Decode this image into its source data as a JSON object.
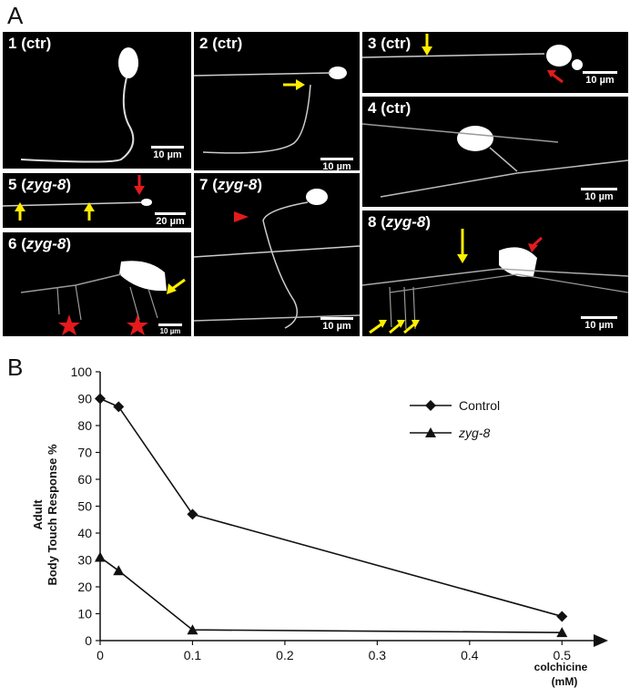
{
  "panel_a_letter": "A",
  "panel_b_letter": "B",
  "image_panels": [
    {
      "num": "1",
      "open": " (ctr)",
      "mutant": "",
      "close": "",
      "scale": "10 µm"
    },
    {
      "num": "2",
      "open": " (ctr)",
      "mutant": "",
      "close": "",
      "scale": "10 µm"
    },
    {
      "num": "3",
      "open": " (ctr)",
      "mutant": "",
      "close": "",
      "scale": "10 µm"
    },
    {
      "num": "4",
      "open": " (ctr)",
      "mutant": "",
      "close": "",
      "scale": "10 µm"
    },
    {
      "num": "5",
      "open": " (",
      "mutant": "zyg-8",
      "close": ")",
      "scale": "20 µm"
    },
    {
      "num": "6",
      "open": " (",
      "mutant": "zyg-8",
      "close": ")",
      "scale": "10 µm"
    },
    {
      "num": "7",
      "open": " (",
      "mutant": "zyg-8",
      "close": ")",
      "scale": "10 µm"
    },
    {
      "num": "8",
      "open": " (",
      "mutant": "zyg-8",
      "close": ")",
      "scale": "10 µm"
    }
  ],
  "chart_data": {
    "type": "line",
    "x": [
      0,
      0.02,
      0.1,
      0.5
    ],
    "x_tick_labels": [
      "0",
      "0.1",
      "0.2",
      "0.3",
      "0.4",
      "0.5"
    ],
    "x_ticks": [
      0,
      0.1,
      0.2,
      0.3,
      0.4,
      0.5
    ],
    "xlim": [
      0,
      0.55
    ],
    "xlabel_line1": "colchicine",
    "xlabel_line2": "(mM)",
    "ylabel_line1": "Adult",
    "ylabel_line2": "Body Touch Response %",
    "ylim": [
      0,
      100
    ],
    "y_ticks": [
      0,
      10,
      20,
      30,
      40,
      50,
      60,
      70,
      80,
      90,
      100
    ],
    "series": [
      {
        "name": "Control",
        "marker": "diamond",
        "values": [
          90,
          87,
          47,
          9
        ]
      },
      {
        "name": "zyg-8",
        "marker": "triangle",
        "italic": true,
        "values": [
          31,
          26,
          4,
          3
        ]
      }
    ],
    "legend_position": "top-right",
    "grid": false
  }
}
